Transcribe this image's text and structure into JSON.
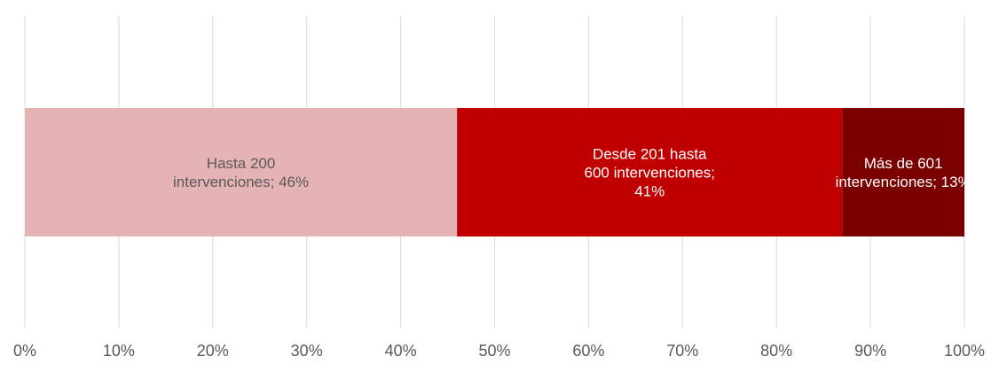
{
  "chart_data": {
    "type": "bar",
    "orientation": "horizontal",
    "stacked": true,
    "normalized": true,
    "xlim": [
      0,
      100
    ],
    "tick_labels": [
      "0%",
      "10%",
      "20%",
      "30%",
      "40%",
      "50%",
      "60%",
      "70%",
      "80%",
      "90%",
      "100%"
    ],
    "grid": true,
    "legend": "none",
    "series": [
      {
        "value": 46,
        "color": "#e6b3b5",
        "text_color": "#595959",
        "label_lines": [
          "Hasta 200",
          "intervenciones; 46%"
        ]
      },
      {
        "value": 41,
        "color": "#c00000",
        "text_color": "#ffffff",
        "label_lines": [
          "Desde 201 hasta",
          "600 intervenciones;",
          "41%"
        ]
      },
      {
        "value": 13,
        "color": "#7b0000",
        "text_color": "#ffffff",
        "label_lines": [
          "Más de 601",
          "intervenciones; 13%"
        ]
      }
    ]
  }
}
